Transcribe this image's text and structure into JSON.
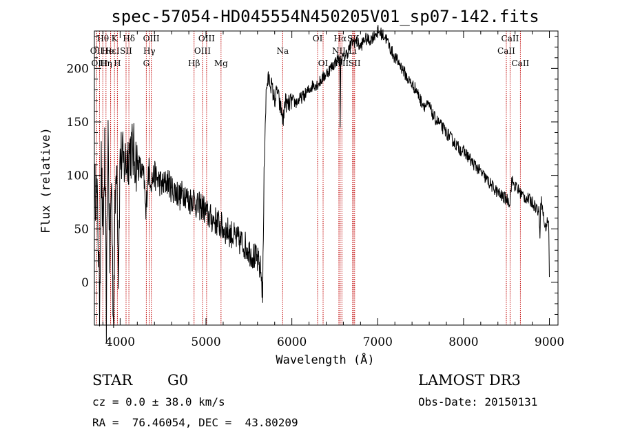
{
  "chart_data": {
    "type": "line",
    "title": "spec-57054-HD045554N450205V01_sp07-142.fits",
    "xlabel": "Wavelength (Å)",
    "ylabel": "Flux (relative)",
    "xlim": [
      3700,
      9100
    ],
    "ylim": [
      -40,
      235
    ],
    "x_ticks": [
      4000,
      5000,
      6000,
      7000,
      8000,
      9000
    ],
    "y_ticks": [
      0,
      50,
      100,
      150,
      200
    ],
    "series": [
      {
        "name": "flux",
        "x": [
          3700,
          3720,
          3740,
          3760,
          3780,
          3800,
          3820,
          3840,
          3860,
          3880,
          3900,
          3920,
          3940,
          3960,
          3980,
          4000,
          4040,
          4080,
          4120,
          4160,
          4200,
          4240,
          4280,
          4300,
          4320,
          4340,
          4360,
          4400,
          4450,
          4500,
          4550,
          4600,
          4650,
          4700,
          4750,
          4800,
          4850,
          4900,
          4950,
          5000,
          5050,
          5100,
          5150,
          5200,
          5250,
          5300,
          5350,
          5400,
          5450,
          5500,
          5550,
          5600,
          5640,
          5660,
          5680,
          5690,
          5700,
          5710,
          5730,
          5760,
          5800,
          5830,
          5860,
          5880,
          5900,
          5920,
          5950,
          6000,
          6050,
          6100,
          6150,
          6200,
          6250,
          6300,
          6350,
          6400,
          6450,
          6500,
          6540,
          6560,
          6563,
          6570,
          6600,
          6650,
          6700,
          6750,
          6800,
          6850,
          6900,
          6950,
          7000,
          7050,
          7100,
          7150,
          7200,
          7250,
          7300,
          7350,
          7400,
          7450,
          7500,
          7550,
          7600,
          7650,
          7700,
          7750,
          7800,
          7850,
          7900,
          7950,
          8000,
          8050,
          8100,
          8150,
          8200,
          8250,
          8300,
          8350,
          8400,
          8450,
          8500,
          8540,
          8560,
          8600,
          8650,
          8700,
          8750,
          8800,
          8850,
          8880,
          8890,
          8900,
          8950,
          8990,
          9000
        ],
        "y": [
          80,
          90,
          60,
          -20,
          110,
          40,
          120,
          -30,
          140,
          20,
          100,
          -35,
          60,
          130,
          10,
          120,
          110,
          115,
          125,
          120,
          110,
          105,
          95,
          60,
          100,
          105,
          95,
          100,
          95,
          90,
          95,
          88,
          85,
          80,
          85,
          75,
          80,
          70,
          72,
          65,
          60,
          58,
          55,
          50,
          48,
          45,
          40,
          38,
          35,
          30,
          25,
          20,
          10,
          -10,
          120,
          150,
          175,
          185,
          190,
          185,
          170,
          180,
          165,
          160,
          150,
          170,
          165,
          170,
          168,
          172,
          175,
          180,
          185,
          185,
          190,
          195,
          200,
          205,
          210,
          205,
          150,
          208,
          210,
          215,
          225,
          225,
          220,
          228,
          226,
          230,
          235,
          232,
          228,
          218,
          210,
          205,
          198,
          190,
          185,
          180,
          170,
          165,
          165,
          155,
          150,
          145,
          140,
          135,
          130,
          125,
          122,
          118,
          112,
          108,
          103,
          98,
          93,
          88,
          84,
          80,
          78,
          75,
          95,
          90,
          85,
          80,
          78,
          75,
          70,
          65,
          45,
          80,
          50,
          60,
          5
        ]
      }
    ],
    "line_markers": [
      {
        "label": "Hθ",
        "wavelength": 3798,
        "row": 0
      },
      {
        "label": "OII",
        "wavelength": 3727,
        "row": 1
      },
      {
        "label": "OIII",
        "wavelength": 3760,
        "row": 2
      },
      {
        "label": "Hε",
        "wavelength": 3889,
        "row": 1
      },
      {
        "label": "He I",
        "wavelength": 3889,
        "row": 1
      },
      {
        "label": "K",
        "wavelength": 3934,
        "row": 0
      },
      {
        "label": "Hη",
        "wavelength": 3835,
        "row": 2
      },
      {
        "label": "H",
        "wavelength": 3968,
        "row": 2
      },
      {
        "label": "Hδ",
        "wavelength": 4102,
        "row": 0
      },
      {
        "label": "SII",
        "wavelength": 4069,
        "row": 1
      },
      {
        "label": "OIII",
        "wavelength": 4363,
        "row": 0
      },
      {
        "label": "Hγ",
        "wavelength": 4340,
        "row": 1
      },
      {
        "label": "G",
        "wavelength": 4305,
        "row": 2
      },
      {
        "label": "Hβ",
        "wavelength": 4861,
        "row": 2
      },
      {
        "label": "OIII",
        "wavelength": 5007,
        "row": 0
      },
      {
        "label": "OIII",
        "wavelength": 4959,
        "row": 1
      },
      {
        "label": "Mg",
        "wavelength": 5175,
        "row": 2
      },
      {
        "label": "Na",
        "wavelength": 5893,
        "row": 1
      },
      {
        "label": "OI",
        "wavelength": 6300,
        "row": 0
      },
      {
        "label": "OI",
        "wavelength": 6364,
        "row": 2
      },
      {
        "label": "Hα",
        "wavelength": 6563,
        "row": 0
      },
      {
        "label": "NII",
        "wavelength": 6548,
        "row": 1
      },
      {
        "label": "NII",
        "wavelength": 6583,
        "row": 2
      },
      {
        "label": "SII",
        "wavelength": 6716,
        "row": 0
      },
      {
        "label": "Li",
        "wavelength": 6708,
        "row": 1
      },
      {
        "label": "SII",
        "wavelength": 6731,
        "row": 2
      },
      {
        "label": "CaII",
        "wavelength": 8542,
        "row": 0
      },
      {
        "label": "CaII",
        "wavelength": 8498,
        "row": 1
      },
      {
        "label": "CaII",
        "wavelength": 8662,
        "row": 2
      }
    ]
  },
  "info": {
    "class": "STAR",
    "subclass": "G0",
    "survey": "LAMOST DR3",
    "cz": "cz = 0.0 ± 38.0 km/s",
    "obs_date": "Obs-Date: 20150131",
    "coords": "RA =  76.46054, DEC =  43.80209"
  },
  "colors": {
    "line_marker": "#c00000",
    "spectrum": "#000000"
  }
}
